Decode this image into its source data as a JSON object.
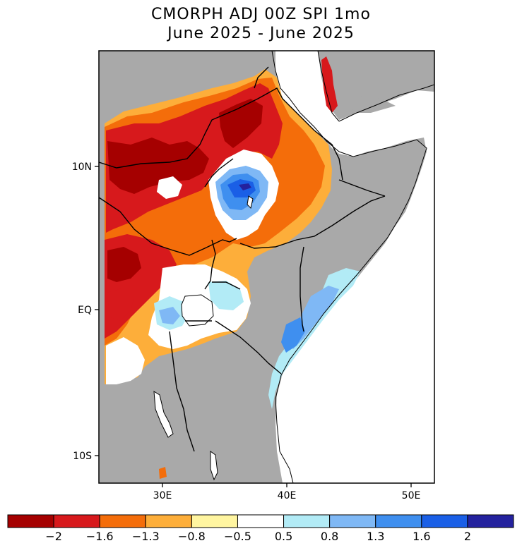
{
  "title": {
    "line1": "CMORPH ADJ 00Z SPI 1mo",
    "line2": "June 2025 - June 2025"
  },
  "map": {
    "region": "East Africa",
    "longitude_ticks": [
      "30E",
      "40E",
      "50E"
    ],
    "latitude_ticks": [
      "10N",
      "EQ",
      "10S"
    ],
    "land_no_data_color": "#a9a9a9",
    "ocean_color": "#ffffff"
  },
  "colorbar": {
    "colors": [
      "#a50000",
      "#d7191c",
      "#f46d0a",
      "#fdae3a",
      "#fff5a0",
      "#ffffff",
      "#b2ebf6",
      "#7fb8f5",
      "#3f8fef",
      "#1a5fe6",
      "#24229e"
    ],
    "labels": [
      "-2",
      "-1.6",
      "-1.3",
      "-0.8",
      "-0.5",
      "0.5",
      "0.8",
      "1.3",
      "1.6",
      "2"
    ]
  }
}
